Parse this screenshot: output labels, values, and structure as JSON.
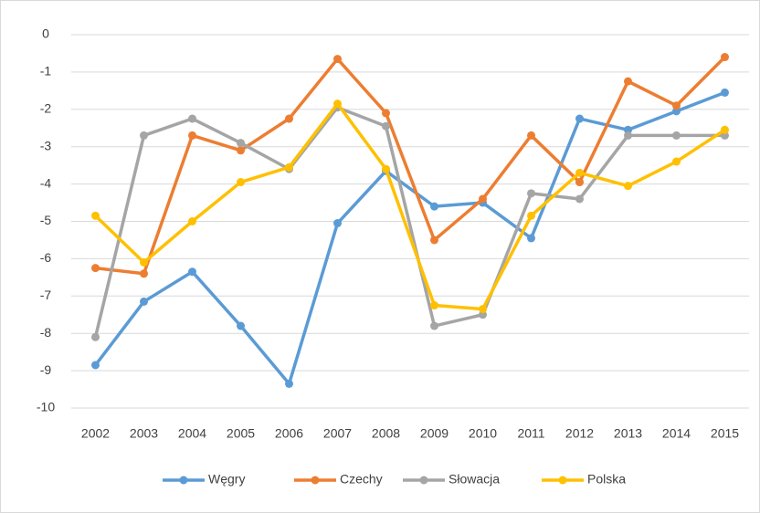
{
  "chart_data": {
    "type": "line",
    "categories": [
      "2002",
      "2003",
      "2004",
      "2005",
      "2006",
      "2007",
      "2008",
      "2009",
      "2010",
      "2011",
      "2012",
      "2013",
      "2014",
      "2015"
    ],
    "series": [
      {
        "name": "Węgry",
        "color": "#5b9bd5",
        "values": [
          -8.85,
          -7.15,
          -6.35,
          -7.8,
          -9.35,
          -5.05,
          -3.65,
          -4.6,
          -4.5,
          -5.45,
          -2.25,
          -2.55,
          -2.05,
          -1.55
        ]
      },
      {
        "name": "Czechy",
        "color": "#ed7d31",
        "values": [
          -6.25,
          -6.4,
          -2.7,
          -3.1,
          -2.25,
          -0.65,
          -2.1,
          -5.5,
          -4.4,
          -2.7,
          -3.95,
          -1.25,
          -1.9,
          -0.6
        ]
      },
      {
        "name": "Słowacja",
        "color": "#a5a5a5",
        "values": [
          -8.1,
          -2.7,
          -2.25,
          -2.9,
          -3.6,
          -1.95,
          -2.45,
          -7.8,
          -7.5,
          -4.25,
          -4.4,
          -2.7,
          -2.7,
          -2.7
        ]
      },
      {
        "name": "Polska",
        "color": "#ffc000",
        "values": [
          -4.85,
          -6.1,
          -5.0,
          -3.95,
          -3.55,
          -1.85,
          -3.6,
          -7.25,
          -7.35,
          -4.85,
          -3.7,
          -4.05,
          -3.4,
          -2.55
        ]
      }
    ],
    "ylim": [
      -10,
      0
    ],
    "yticks": [
      0,
      -1,
      -2,
      -3,
      -4,
      -5,
      -6,
      -7,
      -8,
      -9,
      -10
    ],
    "grid": true,
    "legend": "bottom"
  }
}
